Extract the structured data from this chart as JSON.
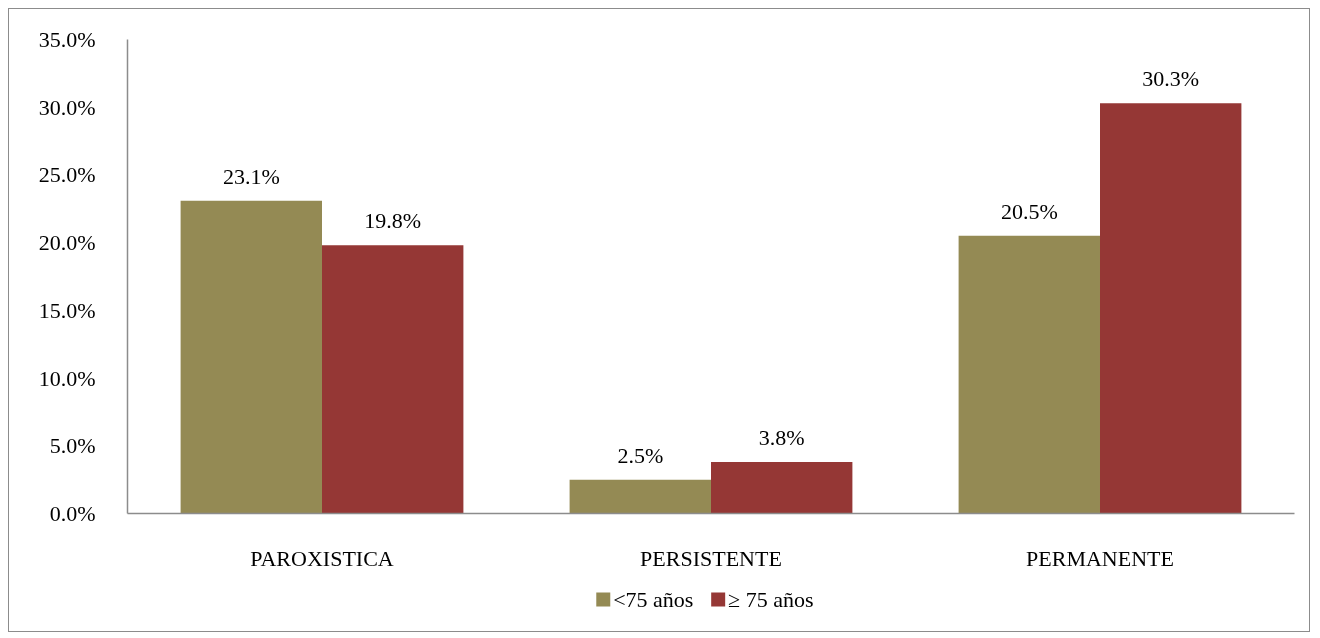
{
  "chart_data": {
    "type": "bar",
    "categories": [
      "PAROXISTICA",
      "PERSISTENTE",
      "PERMANENTE"
    ],
    "series": [
      {
        "name": "<75 años",
        "color": "#948a54",
        "values": [
          23.1,
          2.5,
          20.5
        ],
        "value_labels": [
          "23.1%",
          "2.5%",
          "20.5%"
        ]
      },
      {
        "name": "≥ 75 años",
        "color": "#953735",
        "values": [
          19.8,
          3.8,
          30.3
        ],
        "value_labels": [
          "19.8%",
          "3.8%",
          "30.3%"
        ]
      }
    ],
    "ylim": [
      0,
      35
    ],
    "yticks": [
      {
        "value": 0,
        "label": "0.0%"
      },
      {
        "value": 5,
        "label": "5.0%"
      },
      {
        "value": 10,
        "label": "10.0%"
      },
      {
        "value": 15,
        "label": "15.0%"
      },
      {
        "value": 20,
        "label": "20.0%"
      },
      {
        "value": 25,
        "label": "25.0%"
      },
      {
        "value": 30,
        "label": "30.0%"
      },
      {
        "value": 35,
        "label": "35.0%"
      }
    ],
    "grid": false,
    "legend": "bottom"
  }
}
